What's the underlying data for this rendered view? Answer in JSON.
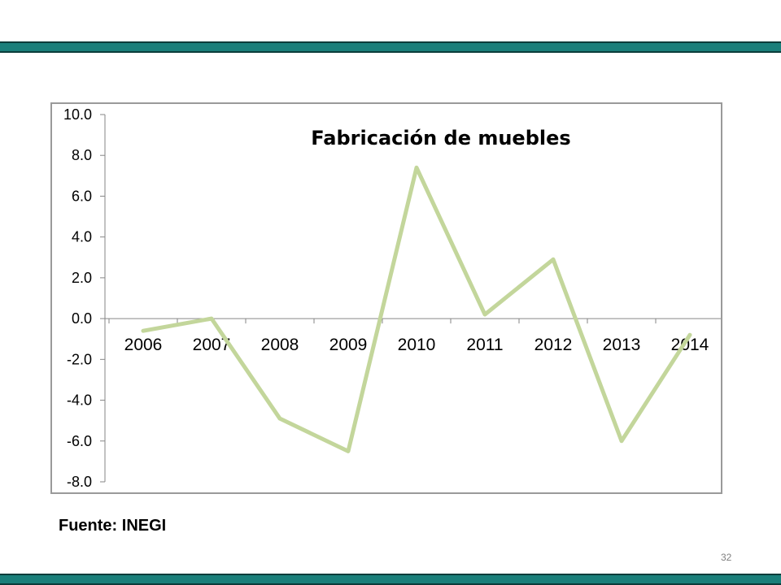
{
  "slide": {
    "source_note": "Fuente: INEGI",
    "page_number": "32",
    "bar_color": "#1a7f7a"
  },
  "chart_data": {
    "type": "line",
    "title": "Fabricación de muebles",
    "xlabel": "",
    "ylabel": "",
    "categories": [
      "2006",
      "2007",
      "2008",
      "2009",
      "2010",
      "2011",
      "2012",
      "2013",
      "2014"
    ],
    "series": [
      {
        "values": [
          -0.6,
          0.0,
          -4.9,
          -6.5,
          7.4,
          0.2,
          2.9,
          -6.0,
          -0.8
        ],
        "color": "#c3d69b"
      }
    ],
    "ylim": [
      -8.0,
      10.0
    ],
    "yticks": [
      "10.0",
      "8.0",
      "6.0",
      "4.0",
      "2.0",
      "0.0",
      "-2.0",
      "-4.0",
      "-6.0",
      "-8.0"
    ],
    "grid": false,
    "legend": "none"
  }
}
